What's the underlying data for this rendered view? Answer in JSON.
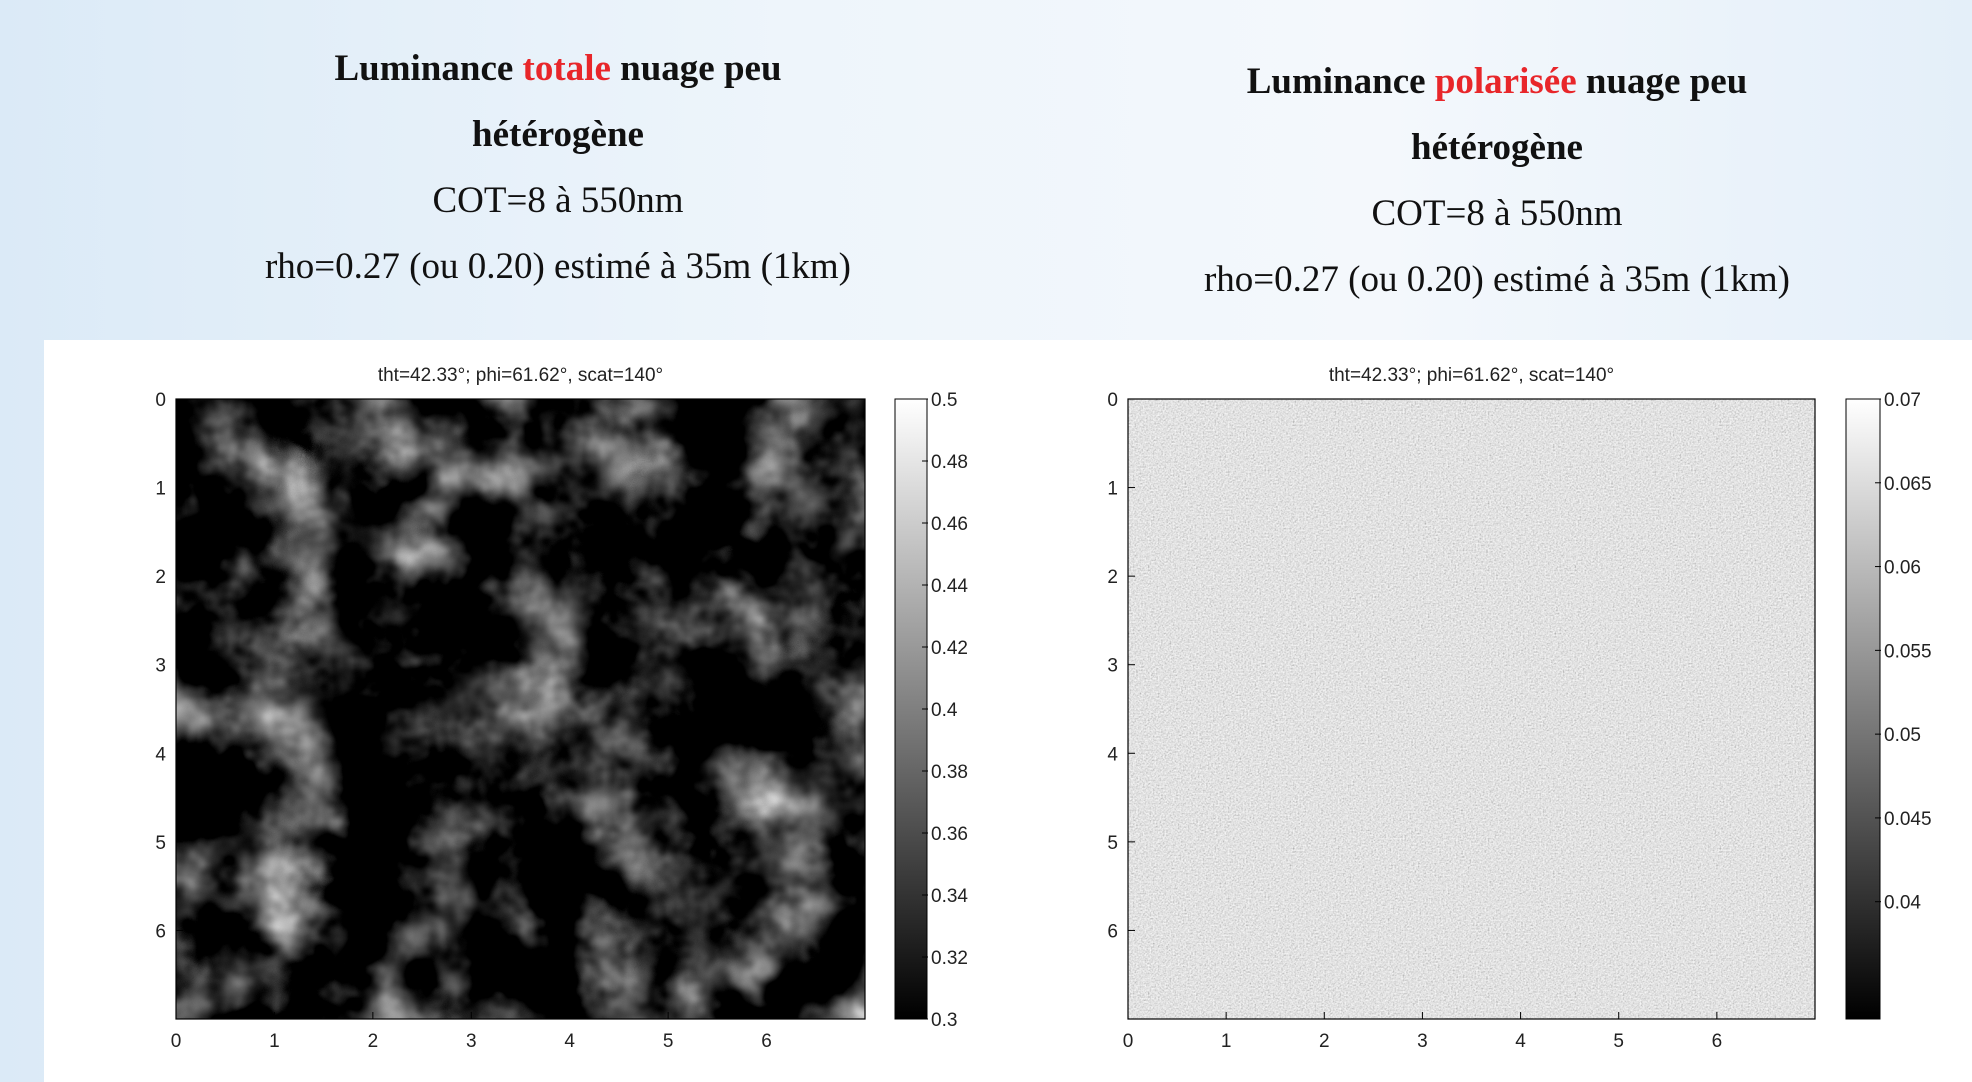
{
  "headings": [
    {
      "lines": [
        {
          "bold": true,
          "parts": [
            {
              "text": "Luminance "
            },
            {
              "text": "totale",
              "color": "#e8262a"
            },
            {
              "text": " nuage peu"
            }
          ]
        },
        {
          "bold": true,
          "parts": [
            {
              "text": "hétérogène"
            }
          ]
        },
        {
          "bold": false,
          "parts": [
            {
              "text": "COT=8 à 550nm"
            }
          ]
        },
        {
          "bold": false,
          "parts": [
            {
              "text": "rho=0.27 (ou 0.20) estimé à 35m (1km)"
            }
          ]
        }
      ]
    },
    {
      "lines": [
        {
          "bold": true,
          "parts": [
            {
              "text": "Luminance "
            },
            {
              "text": "polarisée",
              "color": "#e8262a"
            },
            {
              "text": " nuage peu"
            }
          ]
        },
        {
          "bold": true,
          "parts": [
            {
              "text": "hétérogène"
            }
          ]
        },
        {
          "bold": false,
          "parts": [
            {
              "text": "COT=8 à 550nm"
            }
          ]
        },
        {
          "bold": false,
          "parts": [
            {
              "text": "rho=0.27 (ou 0.20) estimé à 35m (1km)"
            }
          ]
        }
      ]
    }
  ],
  "chart_data": [
    {
      "type": "heatmap",
      "title": "tht=42.33°; phi=61.62°, scat=140°",
      "colormap": "gray",
      "xlim": [
        0,
        7
      ],
      "ylim": [
        0,
        7
      ],
      "y_reversed": true,
      "xticks": [
        0,
        1,
        2,
        3,
        4,
        5,
        6
      ],
      "yticks": [
        0,
        1,
        2,
        3,
        4,
        5,
        6
      ],
      "clim": [
        0.3,
        0.5
      ],
      "cticks": [
        0.3,
        0.32,
        0.34,
        0.36,
        0.38,
        0.4,
        0.42,
        0.44,
        0.46,
        0.48,
        0.5
      ]
    },
    {
      "type": "heatmap",
      "title": "tht=42.33°; phi=61.62°, scat=140°",
      "colormap": "gray",
      "xlim": [
        0,
        7
      ],
      "ylim": [
        0,
        7
      ],
      "y_reversed": true,
      "xticks": [
        0,
        1,
        2,
        3,
        4,
        5,
        6
      ],
      "yticks": [
        0,
        1,
        2,
        3,
        4,
        5,
        6
      ],
      "clim": [
        0.033,
        0.07
      ],
      "cticks": [
        0.04,
        0.045,
        0.05,
        0.055,
        0.06,
        0.065,
        0.07
      ]
    }
  ]
}
